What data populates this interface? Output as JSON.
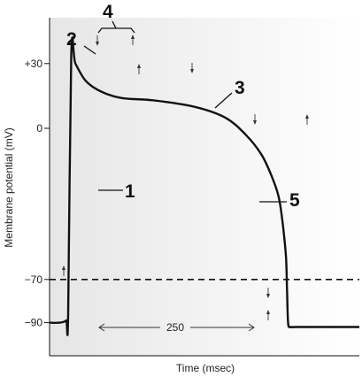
{
  "chart_data": {
    "type": "line",
    "xlabel": "Time (msec)",
    "ylabel": "Membrane  potential (mV)",
    "y_ticks": [
      {
        "value": 30,
        "label": "+30"
      },
      {
        "value": 0,
        "label": "0"
      },
      {
        "value": -70,
        "label": "−70"
      },
      {
        "value": -90,
        "label": "−90"
      }
    ],
    "ylim": [
      -105,
      45
    ],
    "threshold": {
      "value": -70,
      "style": "dashed"
    },
    "duration_label": "250",
    "duration_ms": 250,
    "phase_labels": [
      "1",
      "2",
      "3",
      "4",
      "5"
    ],
    "series": [
      {
        "x": [
          0,
          10,
          16,
          18,
          21,
          25,
          35,
          50,
          70,
          100,
          140,
          170,
          190,
          205,
          215,
          222,
          226,
          229,
          230,
          231,
          233,
          240,
          300
        ],
        "y": [
          -90,
          -90,
          -89,
          -86,
          34,
          30,
          22,
          17,
          14,
          13,
          10,
          5,
          -3,
          -12,
          -22,
          -32,
          -45,
          -60,
          -75,
          -90,
          -92,
          -92,
          -92
        ]
      }
    ],
    "background_gradient": [
      "#e6e6e6",
      "#ffffff"
    ],
    "line_color": "#111111"
  }
}
